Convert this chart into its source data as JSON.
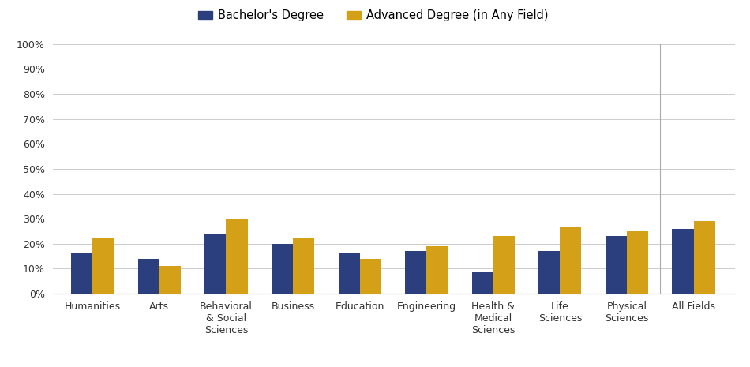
{
  "categories": [
    "Humanities",
    "Arts",
    "Behavioral\n& Social\nSciences",
    "Business",
    "Education",
    "Engineering",
    "Health &\nMedical\nSciences",
    "Life\nSciences",
    "Physical\nSciences",
    "All Fields"
  ],
  "bachelor_values": [
    16,
    14,
    24,
    20,
    16,
    17,
    9,
    17,
    23,
    26
  ],
  "advanced_values": [
    22,
    11,
    30,
    22,
    14,
    19,
    23,
    27,
    25,
    29
  ],
  "bachelor_color": "#2B3F7E",
  "advanced_color": "#D4A017",
  "bachelor_label": "Bachelor's Degree",
  "advanced_label": "Advanced Degree (in Any Field)",
  "ylim": [
    0,
    100
  ],
  "yticks": [
    0,
    10,
    20,
    30,
    40,
    50,
    60,
    70,
    80,
    90,
    100
  ],
  "background_color": "#ffffff",
  "grid_color": "#cccccc",
  "bar_width": 0.32
}
